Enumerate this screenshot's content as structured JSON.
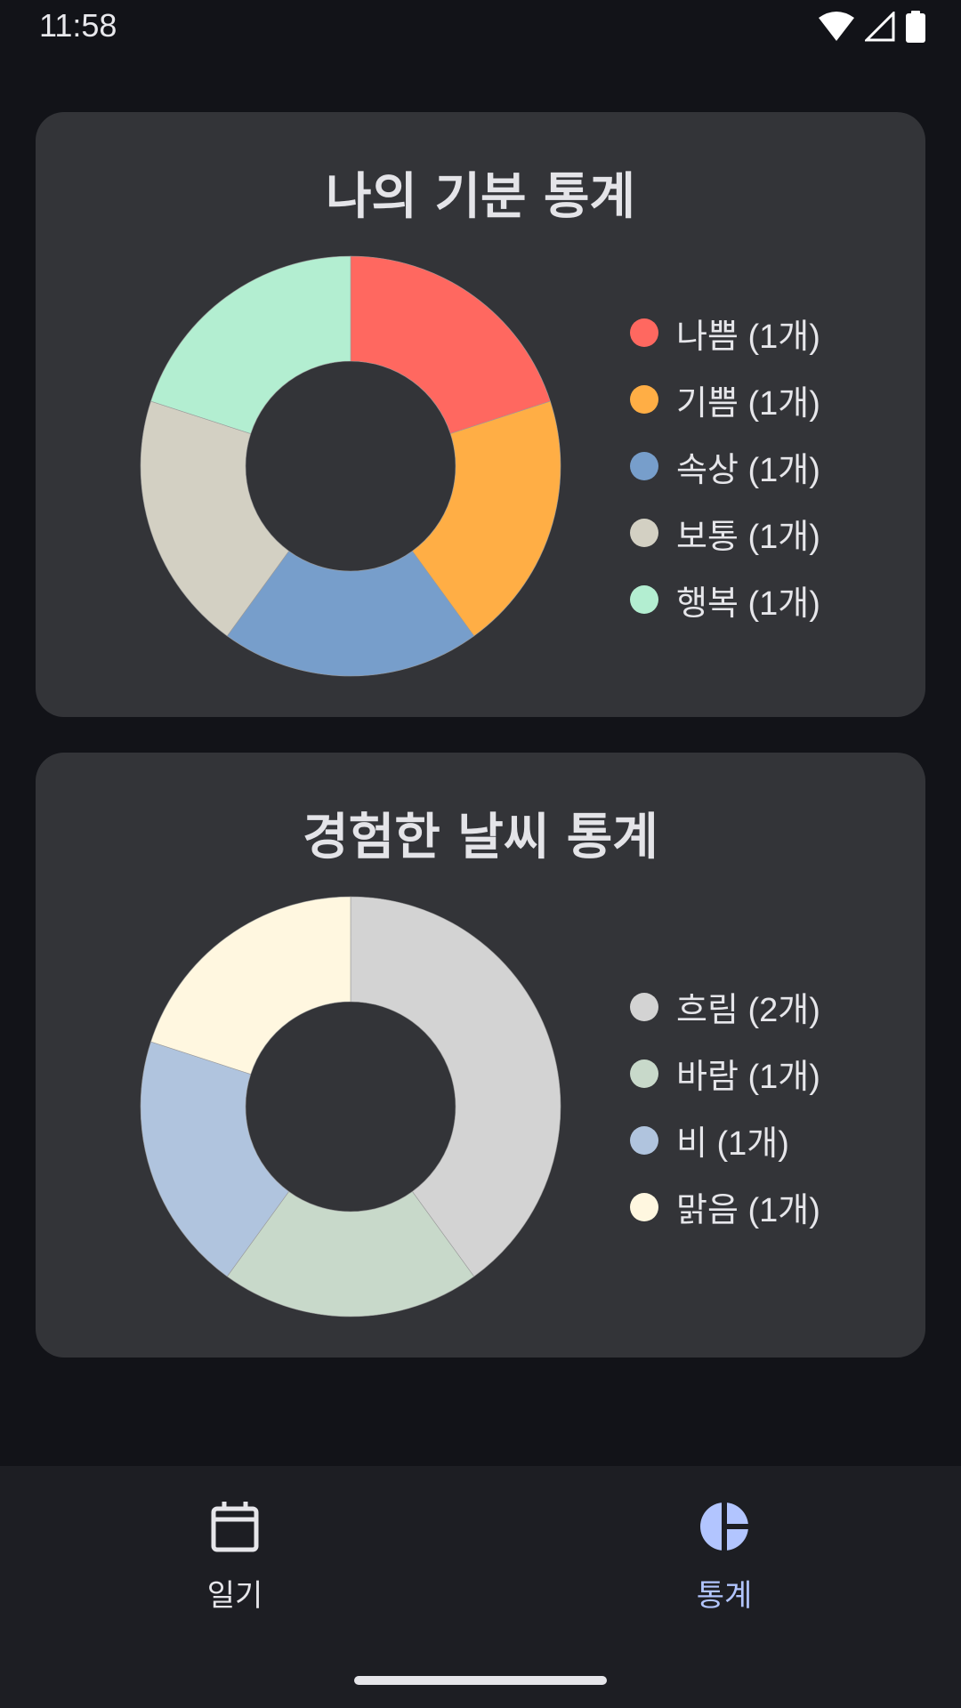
{
  "status_bar": {
    "time": "11:58"
  },
  "mood_card": {
    "title": "나의 기분 통계",
    "chart_data": {
      "type": "pie",
      "categories": [
        "나쁨",
        "기쁨",
        "속상",
        "보통",
        "행복"
      ],
      "values": [
        1,
        1,
        1,
        1,
        1
      ],
      "colors": [
        "#ff6860",
        "#ffae45",
        "#779ecb",
        "#d3d0c3",
        "#b3eed1"
      ],
      "legend_labels": [
        "나쁨 (1개)",
        "기쁨 (1개)",
        "속상 (1개)",
        "보통 (1개)",
        "행복 (1개)"
      ],
      "title": "나의 기분 통계",
      "legend": "right"
    }
  },
  "weather_card": {
    "title": "경험한 날씨 통계",
    "chart_data": {
      "type": "pie",
      "categories": [
        "흐림",
        "바람",
        "비",
        "맑음"
      ],
      "values": [
        2,
        1,
        1,
        1
      ],
      "colors": [
        "#d3d3d3",
        "#c8d9ca",
        "#b0c4de",
        "#fff7e0"
      ],
      "legend_labels": [
        "흐림 (2개)",
        "바람 (1개)",
        "비 (1개)",
        "맑음 (1개)"
      ],
      "title": "경험한 날씨 통계",
      "legend": "right"
    }
  },
  "bottom_nav": {
    "items": [
      {
        "label": "일기",
        "icon": "calendar-icon",
        "selected": false
      },
      {
        "label": "통계",
        "icon": "pie-chart-icon",
        "selected": true
      }
    ],
    "selected_color": "#b2c5ff",
    "unselected_color": "#e6e6ea"
  }
}
